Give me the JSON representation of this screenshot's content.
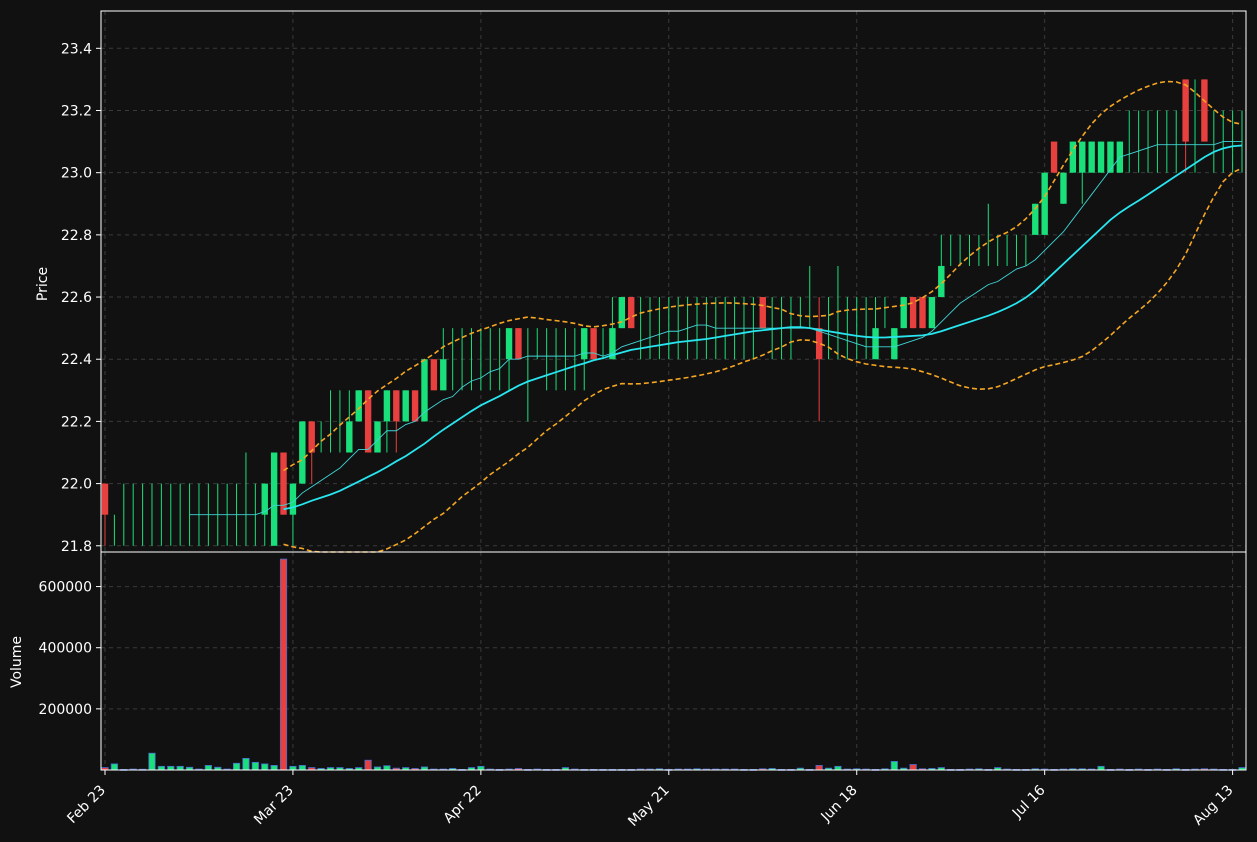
{
  "chart_data": {
    "type": "candlestick",
    "theme": {
      "background": "#111111",
      "up_color": "#19e07a",
      "down_color": "#e8403f",
      "volume_up_color": "#19e07a",
      "volume_down_color": "#e8403f",
      "mav_fast_color": "#3fd6d6",
      "mav_slow_color": "#28e6f0",
      "band_color": "#f5a623",
      "grid_color": "#3a3a3a",
      "text_color": "#ffffff"
    },
    "x_ticks": [
      {
        "label": "Feb 23",
        "index": 0
      },
      {
        "label": "Mar 23",
        "index": 20
      },
      {
        "label": "Apr 22",
        "index": 40
      },
      {
        "label": "May 21",
        "index": 60
      },
      {
        "label": "Jun 18",
        "index": 80
      },
      {
        "label": "Jul 16",
        "index": 100
      },
      {
        "label": "Aug 13",
        "index": 120
      }
    ],
    "price_panel": {
      "ylabel": "Price",
      "ylim": [
        21.78,
        23.52
      ],
      "y_ticks": [
        21.8,
        22.0,
        22.2,
        22.4,
        22.6,
        22.8,
        23.0,
        23.2,
        23.4
      ],
      "grid": true
    },
    "volume_panel": {
      "ylabel": "Volume",
      "ylim": [
        0,
        700000
      ],
      "y_ticks": [
        200000,
        400000,
        600000
      ],
      "grid": true
    },
    "indicators": [
      "moving_average_fast",
      "moving_average_slow",
      "bollinger_upper",
      "bollinger_lower"
    ],
    "candles": [
      [
        22.0,
        22.0,
        21.8,
        21.9,
        8000
      ],
      [
        21.9,
        21.9,
        21.8,
        21.9,
        20000
      ],
      [
        21.9,
        22.0,
        21.8,
        21.9,
        2000
      ],
      [
        21.9,
        22.0,
        21.8,
        21.9,
        3000
      ],
      [
        21.9,
        22.0,
        21.8,
        21.9,
        2500
      ],
      [
        21.9,
        22.0,
        21.8,
        21.9,
        55000
      ],
      [
        21.9,
        22.0,
        21.8,
        21.9,
        12000
      ],
      [
        21.9,
        22.0,
        21.8,
        21.9,
        12000
      ],
      [
        21.9,
        22.0,
        21.8,
        21.9,
        12000
      ],
      [
        21.9,
        22.0,
        21.8,
        21.9,
        9000
      ],
      [
        21.9,
        22.0,
        21.8,
        21.9,
        3000
      ],
      [
        21.9,
        22.0,
        21.8,
        21.9,
        15000
      ],
      [
        21.9,
        22.0,
        21.8,
        21.9,
        9000
      ],
      [
        21.9,
        22.0,
        21.8,
        21.9,
        3000
      ],
      [
        21.9,
        22.0,
        21.8,
        21.9,
        22000
      ],
      [
        21.9,
        22.1,
        21.8,
        21.9,
        38000
      ],
      [
        21.9,
        22.0,
        21.8,
        21.9,
        25000
      ],
      [
        21.9,
        22.0,
        21.8,
        22.0,
        20000
      ],
      [
        21.8,
        22.1,
        21.8,
        22.1,
        15000
      ],
      [
        22.1,
        22.1,
        21.9,
        21.9,
        690000
      ],
      [
        21.9,
        22.0,
        21.8,
        22.0,
        12000
      ],
      [
        22.0,
        22.2,
        22.0,
        22.2,
        15000
      ],
      [
        22.2,
        22.2,
        22.0,
        22.1,
        8000
      ],
      [
        22.1,
        22.2,
        22.1,
        22.1,
        5000
      ],
      [
        22.1,
        22.3,
        22.1,
        22.1,
        8000
      ],
      [
        22.1,
        22.3,
        22.1,
        22.1,
        8000
      ],
      [
        22.1,
        22.3,
        22.1,
        22.2,
        5000
      ],
      [
        22.2,
        22.3,
        22.2,
        22.3,
        8000
      ],
      [
        22.3,
        22.3,
        22.1,
        22.1,
        32000
      ],
      [
        22.1,
        22.2,
        22.1,
        22.2,
        10000
      ],
      [
        22.2,
        22.3,
        22.1,
        22.3,
        14000
      ],
      [
        22.3,
        22.3,
        22.1,
        22.2,
        6000
      ],
      [
        22.2,
        22.3,
        22.2,
        22.3,
        8000
      ],
      [
        22.3,
        22.3,
        22.2,
        22.2,
        5000
      ],
      [
        22.2,
        22.4,
        22.2,
        22.4,
        10000
      ],
      [
        22.4,
        22.4,
        22.3,
        22.3,
        3000
      ],
      [
        22.3,
        22.5,
        22.3,
        22.4,
        3000
      ],
      [
        22.4,
        22.5,
        22.3,
        22.4,
        5000
      ],
      [
        22.4,
        22.5,
        22.3,
        22.4,
        2000
      ],
      [
        22.4,
        22.5,
        22.3,
        22.4,
        8000
      ],
      [
        22.4,
        22.5,
        22.3,
        22.4,
        12000
      ],
      [
        22.4,
        22.5,
        22.3,
        22.4,
        3000
      ],
      [
        22.4,
        22.5,
        22.3,
        22.4,
        2000
      ],
      [
        22.4,
        22.5,
        22.3,
        22.5,
        3000
      ],
      [
        22.5,
        22.5,
        22.4,
        22.4,
        5000
      ],
      [
        22.4,
        22.5,
        22.2,
        22.4,
        2000
      ],
      [
        22.4,
        22.5,
        22.4,
        22.4,
        3000
      ],
      [
        22.4,
        22.5,
        22.3,
        22.4,
        2000
      ],
      [
        22.4,
        22.5,
        22.3,
        22.4,
        2000
      ],
      [
        22.4,
        22.5,
        22.3,
        22.4,
        8000
      ],
      [
        22.4,
        22.5,
        22.3,
        22.4,
        3000
      ],
      [
        22.4,
        22.5,
        22.3,
        22.5,
        2000
      ],
      [
        22.5,
        22.5,
        22.4,
        22.4,
        2000
      ],
      [
        22.4,
        22.5,
        22.4,
        22.4,
        2000
      ],
      [
        22.4,
        22.6,
        22.4,
        22.5,
        2000
      ],
      [
        22.5,
        22.6,
        22.5,
        22.6,
        2000
      ],
      [
        22.6,
        22.6,
        22.5,
        22.5,
        2000
      ],
      [
        22.5,
        22.6,
        22.4,
        22.5,
        3000
      ],
      [
        22.5,
        22.6,
        22.4,
        22.5,
        3000
      ],
      [
        22.5,
        22.6,
        22.4,
        22.5,
        4000
      ],
      [
        22.5,
        22.6,
        22.4,
        22.5,
        2000
      ],
      [
        22.5,
        22.6,
        22.4,
        22.5,
        3000
      ],
      [
        22.5,
        22.6,
        22.4,
        22.5,
        3000
      ],
      [
        22.5,
        22.6,
        22.4,
        22.5,
        4000
      ],
      [
        22.5,
        22.6,
        22.4,
        22.5,
        3000
      ],
      [
        22.5,
        22.6,
        22.4,
        22.5,
        3000
      ],
      [
        22.5,
        22.6,
        22.4,
        22.5,
        3000
      ],
      [
        22.5,
        22.6,
        22.4,
        22.5,
        3000
      ],
      [
        22.5,
        22.6,
        22.4,
        22.5,
        2000
      ],
      [
        22.5,
        22.6,
        22.4,
        22.5,
        2000
      ],
      [
        22.6,
        22.6,
        22.5,
        22.5,
        4000
      ],
      [
        22.5,
        22.6,
        22.4,
        22.5,
        5000
      ],
      [
        22.5,
        22.6,
        22.4,
        22.5,
        2000
      ],
      [
        22.5,
        22.6,
        22.4,
        22.5,
        2000
      ],
      [
        22.5,
        22.6,
        22.5,
        22.5,
        6000
      ],
      [
        22.5,
        22.7,
        22.5,
        22.5,
        2000
      ],
      [
        22.5,
        22.6,
        22.2,
        22.4,
        15000
      ],
      [
        22.4,
        22.6,
        22.4,
        22.4,
        6000
      ],
      [
        22.4,
        22.7,
        22.4,
        22.4,
        12000
      ],
      [
        22.4,
        22.6,
        22.4,
        22.4,
        3000
      ],
      [
        22.4,
        22.6,
        22.4,
        22.4,
        4000
      ],
      [
        22.4,
        22.6,
        22.4,
        22.4,
        3000
      ],
      [
        22.4,
        22.6,
        22.4,
        22.5,
        2000
      ],
      [
        22.5,
        22.6,
        22.5,
        22.5,
        4000
      ],
      [
        22.4,
        22.5,
        22.4,
        22.5,
        28000
      ],
      [
        22.5,
        22.6,
        22.5,
        22.6,
        6000
      ],
      [
        22.6,
        22.6,
        22.5,
        22.5,
        18000
      ],
      [
        22.6,
        22.6,
        22.5,
        22.5,
        4000
      ],
      [
        22.5,
        22.6,
        22.5,
        22.6,
        5000
      ],
      [
        22.6,
        22.8,
        22.6,
        22.7,
        8000
      ],
      [
        22.7,
        22.8,
        22.7,
        22.7,
        2000
      ],
      [
        22.7,
        22.8,
        22.7,
        22.7,
        2000
      ],
      [
        22.7,
        22.8,
        22.7,
        22.7,
        3000
      ],
      [
        22.7,
        22.8,
        22.7,
        22.7,
        4000
      ],
      [
        22.7,
        22.9,
        22.7,
        22.7,
        2000
      ],
      [
        22.7,
        22.8,
        22.7,
        22.7,
        8000
      ],
      [
        22.7,
        22.8,
        22.7,
        22.7,
        3000
      ],
      [
        22.7,
        22.8,
        22.7,
        22.7,
        2000
      ],
      [
        22.7,
        22.8,
        22.7,
        22.7,
        2000
      ],
      [
        22.8,
        22.9,
        22.8,
        22.9,
        4000
      ],
      [
        22.8,
        23.0,
        22.8,
        23.0,
        3000
      ],
      [
        23.1,
        23.1,
        23.0,
        23.0,
        2000
      ],
      [
        22.9,
        23.0,
        22.9,
        23.0,
        3000
      ],
      [
        23.0,
        23.1,
        23.0,
        23.1,
        4000
      ],
      [
        23.0,
        23.1,
        22.9,
        23.1,
        4000
      ],
      [
        23.0,
        23.1,
        23.0,
        23.1,
        3000
      ],
      [
        23.0,
        23.1,
        23.0,
        23.1,
        12000
      ],
      [
        23.0,
        23.1,
        23.0,
        23.1,
        2000
      ],
      [
        23.0,
        23.1,
        23.0,
        23.1,
        3000
      ],
      [
        23.0,
        23.2,
        23.0,
        23.0,
        2000
      ],
      [
        23.1,
        23.2,
        23.0,
        23.1,
        3000
      ],
      [
        23.1,
        23.2,
        23.0,
        23.1,
        2000
      ],
      [
        23.1,
        23.2,
        23.0,
        23.1,
        3000
      ],
      [
        23.1,
        23.2,
        23.0,
        23.1,
        2000
      ],
      [
        23.1,
        23.2,
        23.0,
        23.1,
        4000
      ],
      [
        23.3,
        23.3,
        23.0,
        23.1,
        2000
      ],
      [
        23.1,
        23.3,
        23.0,
        23.1,
        3000
      ],
      [
        23.3,
        23.3,
        23.1,
        23.1,
        4000
      ],
      [
        23.1,
        23.2,
        23.0,
        23.1,
        3000
      ],
      [
        23.1,
        23.2,
        23.0,
        23.1,
        2000
      ],
      [
        23.1,
        23.2,
        23.0,
        23.1,
        2000
      ],
      [
        23.1,
        23.2,
        23.0,
        23.1,
        8000
      ]
    ]
  }
}
